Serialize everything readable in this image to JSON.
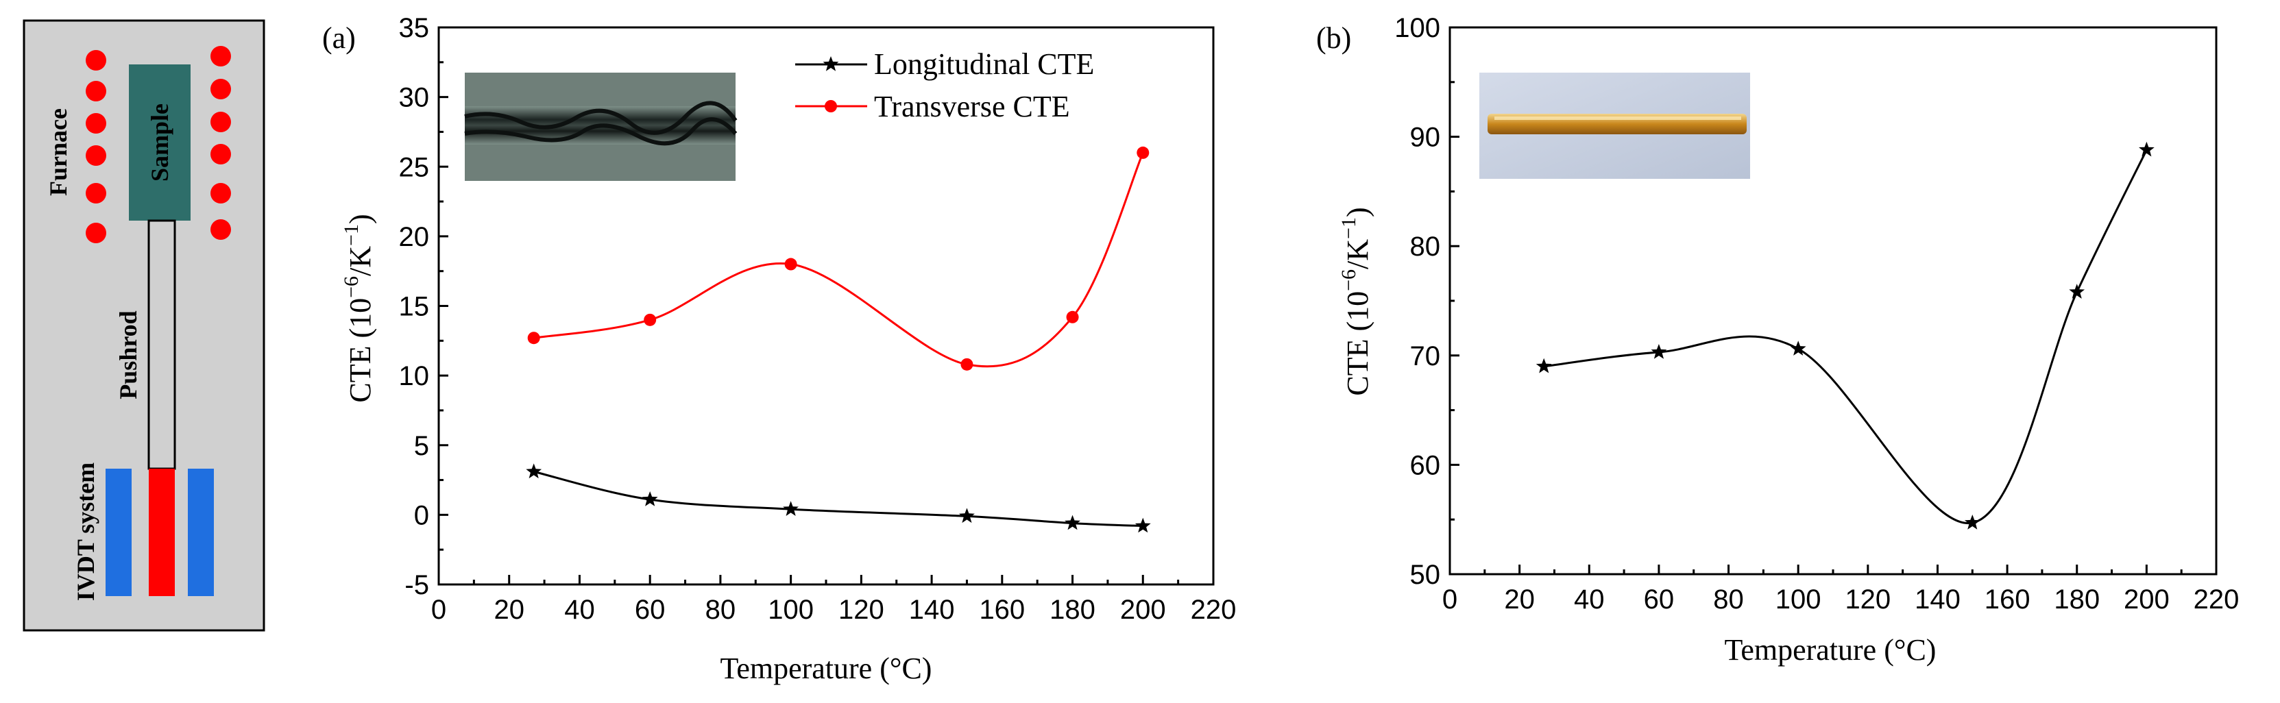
{
  "schematic": {
    "furnace_label": "Furnace",
    "sample_label": "Sample",
    "pushrod_label": "Pushrod",
    "lvdt_label": "IVDT system",
    "colors": {
      "background": "#d0d0d0",
      "furnace_dots": "#ff0000",
      "sample": "#2e6e6a",
      "pushrod": "#d0d0d0",
      "lvdt_coils": "#1f6fe0",
      "lvdt_core": "#ff0000"
    }
  },
  "chart_data": [
    {
      "panel": "(a)",
      "type": "line",
      "xlabel": "Temperature (°C)",
      "ylabel_main": "CTE (10",
      "ylabel_exp1": "−6",
      "ylabel_mid": "/K",
      "ylabel_exp2": "−1",
      "ylabel_end": ")",
      "xlim": [
        0,
        220
      ],
      "ylim": [
        -5,
        35
      ],
      "xticks": [
        0,
        20,
        40,
        60,
        80,
        100,
        120,
        140,
        160,
        180,
        200,
        220
      ],
      "yticks": [
        -5,
        0,
        5,
        10,
        15,
        20,
        25,
        30,
        35
      ],
      "inset": "dark braided fiber photo",
      "legend_position": "top-right",
      "series": [
        {
          "name": "Longitudinal CTE",
          "color": "#000000",
          "marker": "star",
          "x": [
            27,
            60,
            100,
            150,
            180,
            200
          ],
          "y": [
            3.1,
            1.1,
            0.4,
            -0.1,
            -0.6,
            -0.8
          ]
        },
        {
          "name": "Transverse CTE",
          "color": "#ff0000",
          "marker": "circle",
          "x": [
            27,
            60,
            100,
            150,
            180,
            200
          ],
          "y": [
            12.7,
            14.0,
            18.0,
            10.8,
            14.2,
            26.0
          ]
        }
      ]
    },
    {
      "panel": "(b)",
      "type": "line",
      "xlabel": "Temperature (°C)",
      "ylabel_main": "CTE (10",
      "ylabel_exp1": "−6",
      "ylabel_mid": "/K",
      "ylabel_exp2": "−1",
      "ylabel_end": ")",
      "xlim": [
        0,
        220
      ],
      "ylim": [
        50,
        100
      ],
      "xticks": [
        0,
        20,
        40,
        60,
        80,
        100,
        120,
        140,
        160,
        180,
        200,
        220
      ],
      "yticks": [
        50,
        60,
        70,
        80,
        90,
        100
      ],
      "inset": "amber rod photo",
      "series": [
        {
          "name": "CTE",
          "color": "#000000",
          "marker": "star",
          "x": [
            27,
            60,
            100,
            150,
            180,
            200
          ],
          "y": [
            69.0,
            70.3,
            70.6,
            54.7,
            75.8,
            88.8
          ]
        }
      ]
    }
  ]
}
